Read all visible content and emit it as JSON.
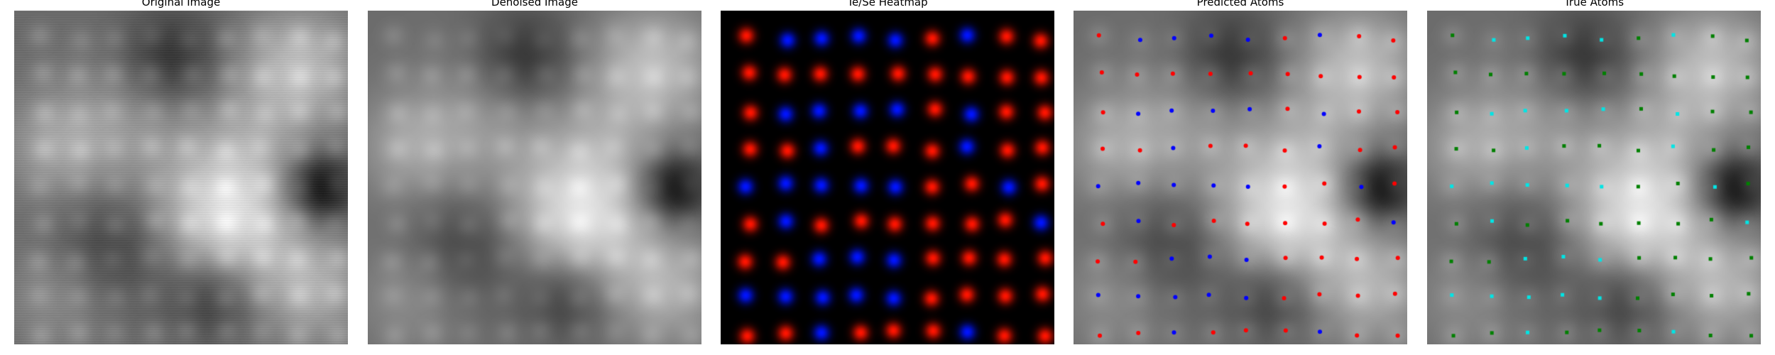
{
  "panels": {
    "original": {
      "title": "Original Image"
    },
    "denoised": {
      "title": "Denoised Image"
    },
    "heatmap": {
      "title": "Te/Se Heatmap"
    },
    "predicted": {
      "title": "Predicted Atoms"
    },
    "true_atoms": {
      "title": "True Atoms"
    }
  },
  "colors": {
    "te": "#ff2020",
    "se": "#1f1fff",
    "pred_te_marker": "#ff0000",
    "pred_se_marker": "#0000ff",
    "true_te_marker": "#008000",
    "true_se_marker": "#00e5e5",
    "background": "#ffffff"
  },
  "lattice": {
    "te_se_map": [
      "TSSSSTSTT",
      "TTTTTTTTT",
      "TSSSSTSTT",
      "TTSTTTSTT",
      "SSSSSTTST",
      "TSTTTTTTS",
      "TTSSSTTTT",
      "SSSSSTTTT",
      "TTSTTTSTT"
    ]
  }
}
